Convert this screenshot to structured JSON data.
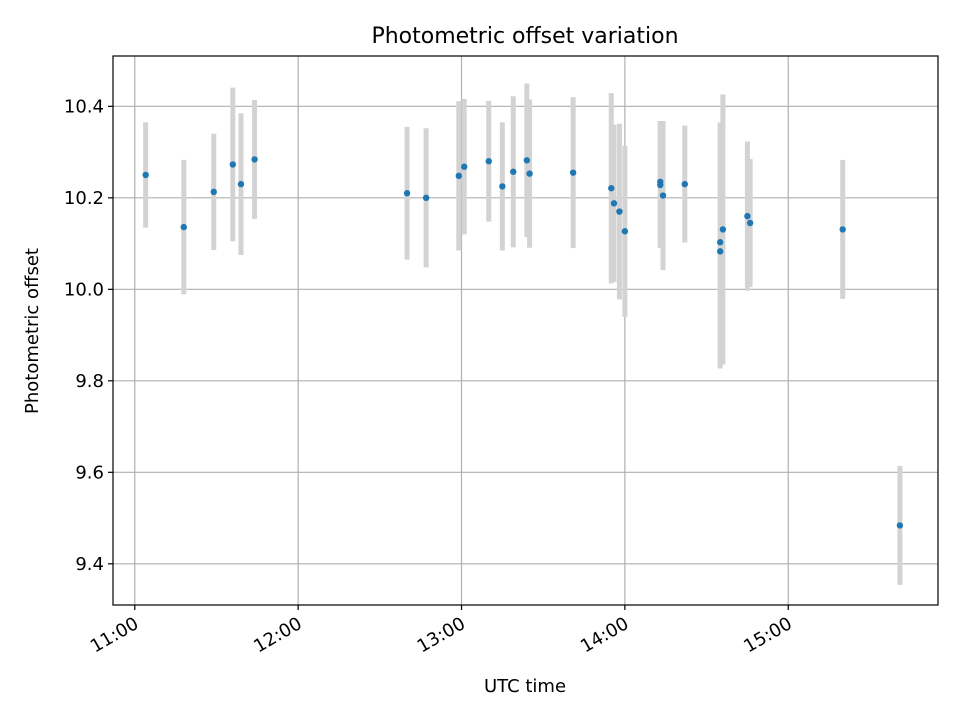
{
  "chart_data": {
    "type": "scatter",
    "title": "Photometric offset variation",
    "xlabel": "UTC time",
    "ylabel": "Photometric offset",
    "x_is_time": true,
    "xlim": [
      "10:52",
      "15:55"
    ],
    "ylim": [
      9.31,
      10.51
    ],
    "x_ticks": [
      "11:00",
      "12:00",
      "13:00",
      "14:00",
      "15:00"
    ],
    "y_ticks": [
      9.4,
      9.6,
      9.8,
      10.0,
      10.2,
      10.4
    ],
    "y_tick_labels": [
      "9.4",
      "9.6",
      "9.8",
      "10.0",
      "10.2",
      "10.4"
    ],
    "grid": true,
    "point_color": "#1f77b4",
    "errorbar_color": "#d3d3d3",
    "points": [
      {
        "x": "11:04",
        "y": 10.25,
        "err": 0.115
      },
      {
        "x": "11:18",
        "y": 10.136,
        "err": 0.147
      },
      {
        "x": "11:29",
        "y": 10.213,
        "err": 0.127
      },
      {
        "x": "11:36",
        "y": 10.273,
        "err": 0.168
      },
      {
        "x": "11:39",
        "y": 10.23,
        "err": 0.155
      },
      {
        "x": "11:44",
        "y": 10.284,
        "err": 0.13
      },
      {
        "x": "12:40",
        "y": 10.21,
        "err": 0.145
      },
      {
        "x": "12:47",
        "y": 10.2,
        "err": 0.152
      },
      {
        "x": "12:59",
        "y": 10.248,
        "err": 0.163
      },
      {
        "x": "13:01",
        "y": 10.268,
        "err": 0.148
      },
      {
        "x": "13:10",
        "y": 10.28,
        "err": 0.132
      },
      {
        "x": "13:15",
        "y": 10.225,
        "err": 0.14
      },
      {
        "x": "13:19",
        "y": 10.257,
        "err": 0.165
      },
      {
        "x": "13:24",
        "y": 10.282,
        "err": 0.168
      },
      {
        "x": "13:25",
        "y": 10.253,
        "err": 0.162
      },
      {
        "x": "13:41",
        "y": 10.255,
        "err": 0.165
      },
      {
        "x": "13:55",
        "y": 10.221,
        "err": 0.208
      },
      {
        "x": "13:56",
        "y": 10.188,
        "err": 0.172
      },
      {
        "x": "13:58",
        "y": 10.17,
        "err": 0.192
      },
      {
        "x": "14:00",
        "y": 10.127,
        "err": 0.187
      },
      {
        "x": "14:13",
        "y": 10.228,
        "err": 0.138
      },
      {
        "x": "14:13",
        "y": 10.235,
        "err": 0.133
      },
      {
        "x": "14:14",
        "y": 10.205,
        "err": 0.163
      },
      {
        "x": "14:22",
        "y": 10.23,
        "err": 0.128
      },
      {
        "x": "14:35",
        "y": 10.083,
        "err": 0.256
      },
      {
        "x": "14:35",
        "y": 10.103,
        "err": 0.262
      },
      {
        "x": "14:36",
        "y": 10.131,
        "err": 0.295
      },
      {
        "x": "14:45",
        "y": 10.16,
        "err": 0.163
      },
      {
        "x": "14:46",
        "y": 10.145,
        "err": 0.14
      },
      {
        "x": "15:20",
        "y": 10.131,
        "err": 0.152
      },
      {
        "x": "15:41",
        "y": 9.484,
        "err": 0.13
      }
    ]
  }
}
